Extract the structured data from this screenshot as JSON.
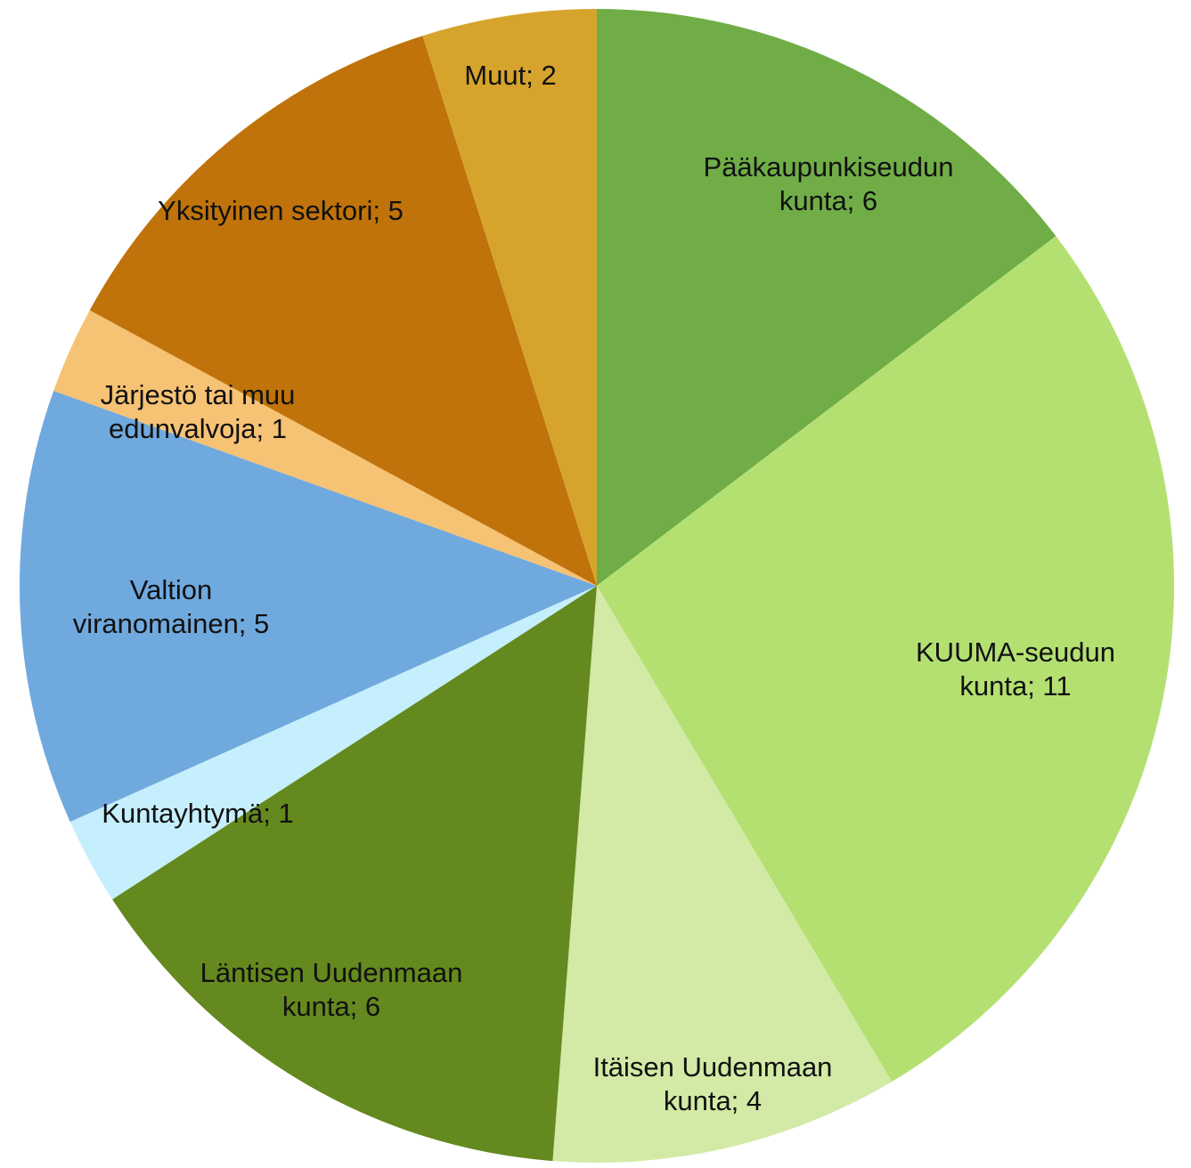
{
  "chart_data": {
    "type": "pie",
    "categories": [
      "Pääkaupunkiseudun kunta",
      "KUUMA-seudun kunta",
      "Itäisen Uudenmaan kunta",
      "Läntisen Uudenmaan kunta",
      "Kuntayhtymä",
      "Valtion viranomainen",
      "Järjestö tai muu edunvalvoja",
      "Yksityinen sektori",
      "Muut"
    ],
    "values": [
      6,
      11,
      4,
      6,
      1,
      5,
      1,
      5,
      2
    ],
    "value_labels": [
      "Pääkaupunkiseudun kunta; 6",
      "KUUMA-seudun kunta; 11",
      "Itäisen Uudenmaan kunta; 4",
      "Läntisen Uudenmaan kunta; 6",
      "Kuntayhtymä; 1",
      "Valtion viranomainen; 5",
      "Järjestö tai muu edunvalvoja; 1",
      "Yksityinen sektori; 5",
      "Muut; 2"
    ],
    "colors": [
      "#70ad47",
      "#b4e072",
      "#d2eaa5",
      "#64891e",
      "#c5effc",
      "#70a9de",
      "#f6c274",
      "#c0730a",
      "#d6a42c"
    ]
  }
}
